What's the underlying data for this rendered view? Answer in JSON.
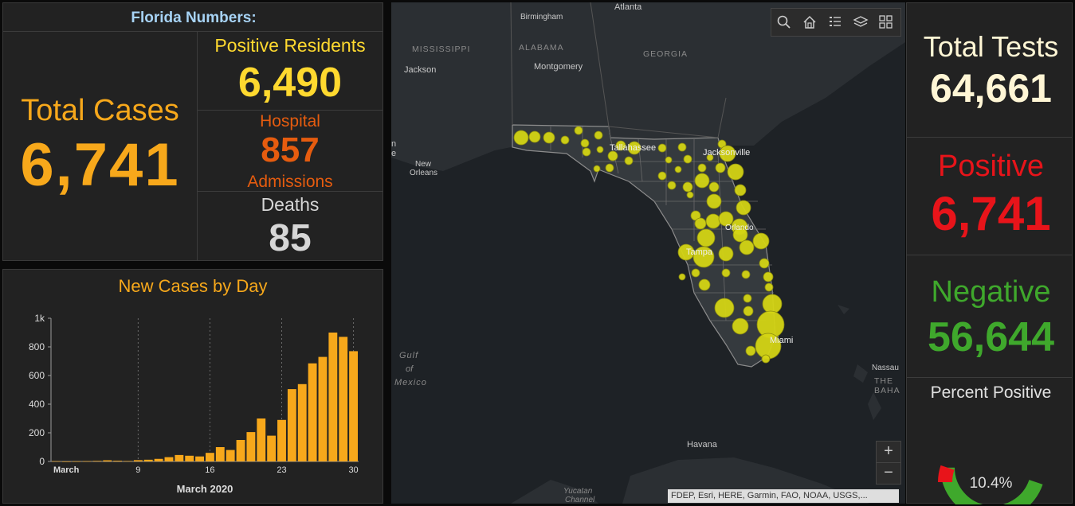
{
  "numbers": {
    "title": "Florida Numbers:",
    "total_cases_label": "Total Cases",
    "total_cases": "6,741",
    "positive_residents_label": "Positive Residents",
    "positive_residents": "6,490",
    "hospital_label": "Hospital",
    "hospital_value": "857",
    "admissions_label": "Admissions",
    "deaths_label": "Deaths",
    "deaths_value": "85"
  },
  "chart_data": {
    "type": "bar",
    "title": "New Cases by Day",
    "xlabel": "March 2020",
    "ylabel": "",
    "ylim": [
      0,
      1000
    ],
    "yticks": [
      "0",
      "200",
      "400",
      "600",
      "800",
      "1k"
    ],
    "xticks": [
      "March",
      "9",
      "16",
      "23",
      "30"
    ],
    "values": [
      2,
      0,
      1,
      2,
      4,
      8,
      5,
      3,
      9,
      12,
      18,
      30,
      45,
      40,
      35,
      60,
      100,
      80,
      150,
      205,
      300,
      180,
      290,
      505,
      540,
      685,
      730,
      900,
      870,
      770
    ],
    "color": "#f7a81b"
  },
  "map": {
    "labels": {
      "birmingham": "Birmingham",
      "atlanta": "Atlanta",
      "mississippi": "MISSISSIPPI",
      "alabama": "ALABAMA",
      "georgia": "GEORGIA",
      "jackson": "Jackson",
      "montgomery": "Montgomery",
      "new_orleans_1": "New",
      "new_orleans_2": "Orleans",
      "tallahassee": "Tallahassee",
      "jacksonville": "Jacksonville",
      "orlando": "Orlando",
      "tampa": "Tampa",
      "miami": "Miami",
      "gulf_1": "Gulf",
      "gulf_2": "of",
      "gulf_3": "Mexico",
      "nassau": "Nassau",
      "bahamas": "THE BAHA",
      "havana": "Havana",
      "yucatan_1": "Yucatan",
      "yucatan_2": "Channel",
      "edge_la": "n",
      "edge_e": "e"
    },
    "attribution": "FDEP, Esri, HERE, Garmin, FAO, NOAA, USGS,...",
    "zoom_in": "+",
    "zoom_out": "−",
    "icons": [
      "search-icon",
      "home-icon",
      "legend-icon",
      "layers-icon",
      "basemap-gallery-icon"
    ]
  },
  "tests": {
    "total_label": "Total Tests",
    "total_value": "64,661",
    "positive_label": "Positive",
    "positive_value": "6,741",
    "negative_label": "Negative",
    "negative_value": "56,644",
    "percent_label": "Percent Positive",
    "percent_value": "10.4%",
    "percent_fraction": 0.104
  },
  "colors": {
    "orange": "#f7a81b",
    "yellow": "#ffd92f",
    "hospital": "#e65c0f",
    "positive_red": "#e8141a",
    "negative_green": "#3fa82c",
    "total_tests": "#fff6d5",
    "bubble": "#d4d414"
  }
}
